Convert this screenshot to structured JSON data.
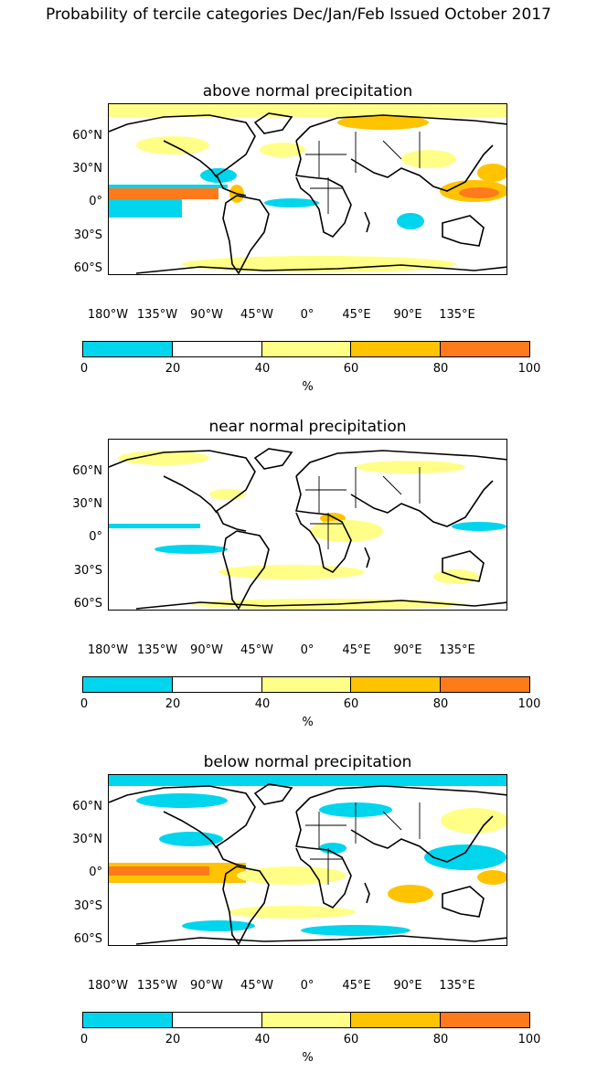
{
  "figure": {
    "suptitle": "Probability of tercile categories Dec/Jan/Feb Issued October 2017"
  },
  "panels": [
    {
      "title": "above normal precipitation"
    },
    {
      "title": "near normal precipitation"
    },
    {
      "title": "below normal precipitation"
    }
  ],
  "axes": {
    "lat_ticks": [
      "60°N",
      "30°N",
      "0°",
      "30°S",
      "60°S"
    ],
    "lon_ticks": [
      "180°W",
      "135°W",
      "90°W",
      "45°W",
      "0°",
      "45°E",
      "90°E",
      "135°E"
    ]
  },
  "colorbar": {
    "tick_labels": [
      "0",
      "20",
      "40",
      "60",
      "80",
      "100"
    ],
    "unit": "%",
    "bins": [
      {
        "range": [
          0,
          20
        ],
        "color": "#00d5ee"
      },
      {
        "range": [
          20,
          40
        ],
        "color": "#ffffff"
      },
      {
        "range": [
          40,
          60
        ],
        "color": "#ffff88"
      },
      {
        "range": [
          60,
          80
        ],
        "color": "#ffc300"
      },
      {
        "range": [
          80,
          100
        ],
        "color": "#ff7a1a"
      }
    ]
  },
  "map_colors": {
    "coast": "#000000",
    "category_lt20": "#00d5ee",
    "category_40_60": "#ffff88",
    "category_60_80": "#ffc300",
    "category_80_100": "#ff7a1a"
  }
}
